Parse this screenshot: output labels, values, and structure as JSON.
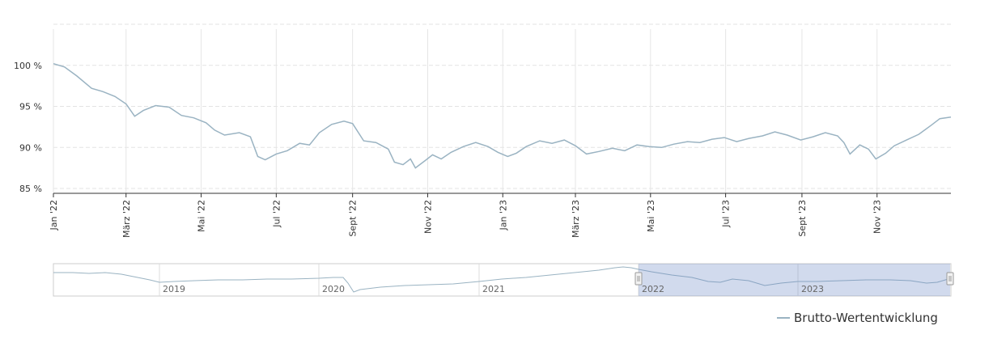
{
  "chart_data": {
    "type": "line",
    "y_unit": "%",
    "ylim": [
      85,
      105
    ],
    "yticks": [
      {
        "value": 100,
        "label": "100 %"
      },
      {
        "value": 95,
        "label": "95 %"
      },
      {
        "value": 90,
        "label": "90 %"
      },
      {
        "value": 85,
        "label": "85 %"
      }
    ],
    "x_range": [
      "2022-01-01",
      "2023-12-31"
    ],
    "xticks": [
      {
        "date": "2022-01-01",
        "label": "Jan '22"
      },
      {
        "date": "2022-03-01",
        "label": "März '22"
      },
      {
        "date": "2022-05-01",
        "label": "Mai '22"
      },
      {
        "date": "2022-07-01",
        "label": "Jul '22"
      },
      {
        "date": "2022-09-01",
        "label": "Sept '22"
      },
      {
        "date": "2022-11-01",
        "label": "Nov '22"
      },
      {
        "date": "2023-01-01",
        "label": "Jan '23"
      },
      {
        "date": "2023-03-01",
        "label": "März '23"
      },
      {
        "date": "2023-05-01",
        "label": "Mai '23"
      },
      {
        "date": "2023-07-01",
        "label": "Jul '23"
      },
      {
        "date": "2023-09-01",
        "label": "Sept '23"
      },
      {
        "date": "2023-11-01",
        "label": "Nov '23"
      }
    ],
    "grid": true,
    "legend_position": "bottom-right",
    "series": [
      {
        "name": "Brutto-Wertentwicklung",
        "color": "#9ab3c2",
        "points": [
          [
            "2022-01-01",
            100.2
          ],
          [
            "2022-01-10",
            99.8
          ],
          [
            "2022-01-20",
            98.7
          ],
          [
            "2022-02-01",
            97.2
          ],
          [
            "2022-02-10",
            96.8
          ],
          [
            "2022-02-20",
            96.2
          ],
          [
            "2022-03-01",
            95.3
          ],
          [
            "2022-03-08",
            93.8
          ],
          [
            "2022-03-15",
            94.5
          ],
          [
            "2022-03-25",
            95.1
          ],
          [
            "2022-04-05",
            94.9
          ],
          [
            "2022-04-15",
            93.9
          ],
          [
            "2022-04-25",
            93.6
          ],
          [
            "2022-05-05",
            93.0
          ],
          [
            "2022-05-12",
            92.1
          ],
          [
            "2022-05-20",
            91.5
          ],
          [
            "2022-06-01",
            91.8
          ],
          [
            "2022-06-10",
            91.3
          ],
          [
            "2022-06-16",
            88.9
          ],
          [
            "2022-06-22",
            88.5
          ],
          [
            "2022-07-01",
            89.2
          ],
          [
            "2022-07-10",
            89.6
          ],
          [
            "2022-07-20",
            90.5
          ],
          [
            "2022-07-28",
            90.3
          ],
          [
            "2022-08-05",
            91.8
          ],
          [
            "2022-08-15",
            92.8
          ],
          [
            "2022-08-25",
            93.2
          ],
          [
            "2022-09-01",
            92.9
          ],
          [
            "2022-09-10",
            90.8
          ],
          [
            "2022-09-20",
            90.6
          ],
          [
            "2022-09-30",
            89.8
          ],
          [
            "2022-10-05",
            88.2
          ],
          [
            "2022-10-12",
            87.9
          ],
          [
            "2022-10-18",
            88.6
          ],
          [
            "2022-10-22",
            87.5
          ],
          [
            "2022-10-30",
            88.4
          ],
          [
            "2022-11-05",
            89.1
          ],
          [
            "2022-11-12",
            88.6
          ],
          [
            "2022-11-20",
            89.4
          ],
          [
            "2022-11-30",
            90.1
          ],
          [
            "2022-12-10",
            90.6
          ],
          [
            "2022-12-20",
            90.1
          ],
          [
            "2022-12-28",
            89.4
          ],
          [
            "2023-01-05",
            88.9
          ],
          [
            "2023-01-12",
            89.3
          ],
          [
            "2023-01-20",
            90.1
          ],
          [
            "2023-01-31",
            90.8
          ],
          [
            "2023-02-10",
            90.5
          ],
          [
            "2023-02-20",
            90.9
          ],
          [
            "2023-03-01",
            90.2
          ],
          [
            "2023-03-10",
            89.2
          ],
          [
            "2023-03-20",
            89.5
          ],
          [
            "2023-03-31",
            89.9
          ],
          [
            "2023-04-10",
            89.6
          ],
          [
            "2023-04-20",
            90.3
          ],
          [
            "2023-04-30",
            90.1
          ],
          [
            "2023-05-10",
            90.0
          ],
          [
            "2023-05-20",
            90.4
          ],
          [
            "2023-05-31",
            90.7
          ],
          [
            "2023-06-10",
            90.6
          ],
          [
            "2023-06-20",
            91.0
          ],
          [
            "2023-06-30",
            91.2
          ],
          [
            "2023-07-10",
            90.7
          ],
          [
            "2023-07-20",
            91.1
          ],
          [
            "2023-07-31",
            91.4
          ],
          [
            "2023-08-10",
            91.9
          ],
          [
            "2023-08-20",
            91.5
          ],
          [
            "2023-08-31",
            90.9
          ],
          [
            "2023-09-10",
            91.3
          ],
          [
            "2023-09-20",
            91.8
          ],
          [
            "2023-09-30",
            91.4
          ],
          [
            "2023-10-05",
            90.6
          ],
          [
            "2023-10-10",
            89.2
          ],
          [
            "2023-10-18",
            90.3
          ],
          [
            "2023-10-25",
            89.8
          ],
          [
            "2023-10-31",
            88.6
          ],
          [
            "2023-11-08",
            89.3
          ],
          [
            "2023-11-15",
            90.2
          ],
          [
            "2023-11-25",
            90.9
          ],
          [
            "2023-12-05",
            91.6
          ],
          [
            "2023-12-15",
            92.7
          ],
          [
            "2023-12-22",
            93.5
          ],
          [
            "2023-12-31",
            93.7
          ]
        ]
      }
    ],
    "navigator": {
      "labels": [
        "2019",
        "2020",
        "2021",
        "2022",
        "2023"
      ],
      "selected_range": [
        "2022-01-01",
        "2023-12-31"
      ]
    }
  }
}
